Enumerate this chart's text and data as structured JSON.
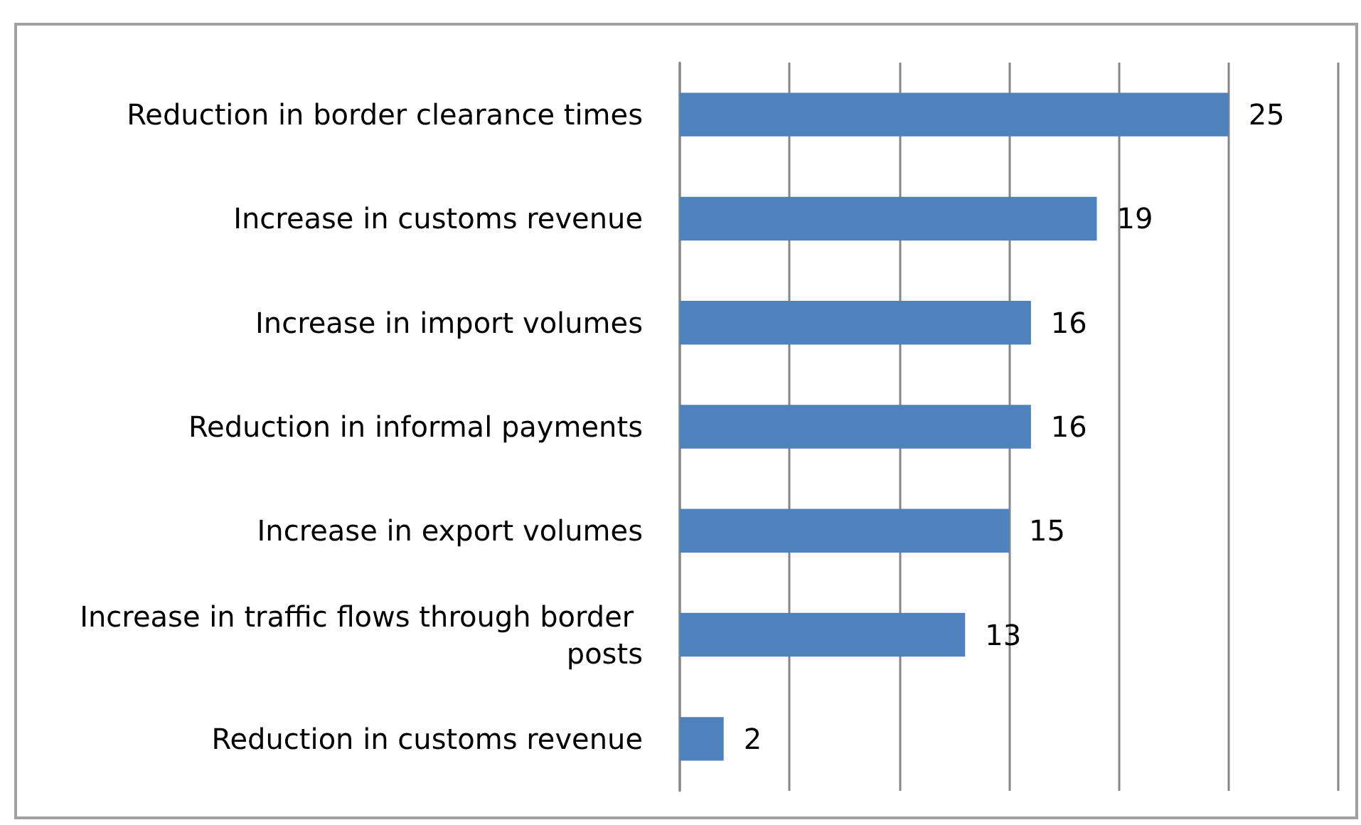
{
  "chart_data": {
    "type": "bar",
    "orientation": "horizontal",
    "categories": [
      "Reduction in border clearance times",
      "Increase in customs revenue",
      "Increase in import volumes",
      "Reduction in informal payments",
      "Increase in export volumes",
      "Increase in traffic flows through border posts",
      "Reduction in customs revenue"
    ],
    "values": [
      25,
      19,
      16,
      16,
      15,
      13,
      2
    ],
    "color": "#4f81bd",
    "data_labels": true,
    "xlim": [
      0,
      30
    ],
    "xticks": [
      {
        "value": 0,
        "label": null
      },
      {
        "value": 5,
        "label": null
      },
      {
        "value": 10,
        "label": null
      },
      {
        "value": 15,
        "label": null
      },
      {
        "value": 20,
        "label": null
      },
      {
        "value": 25,
        "label": null
      },
      {
        "value": 30,
        "label": null
      }
    ],
    "grid": "x",
    "tick_labels": "y"
  }
}
